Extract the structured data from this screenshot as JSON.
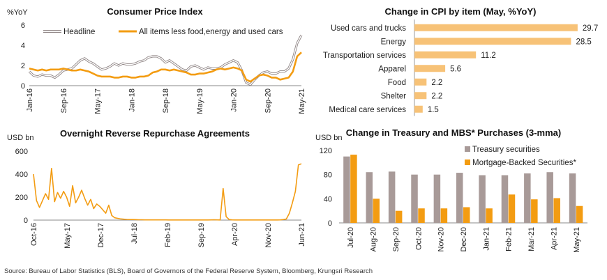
{
  "chart_data": [
    {
      "type": "line",
      "title": "Consumer Price Index",
      "unit_label": "%YoY",
      "ylim": [
        0,
        6
      ],
      "yticks": [
        0,
        2,
        4,
        6
      ],
      "x_ticks": [
        "Jan-16",
        "Sep-16",
        "May-17",
        "Jan-18",
        "Sep-18",
        "May-19",
        "Jan-20",
        "Sep-20",
        "May-21"
      ],
      "x_range": [
        "2016-01",
        "2021-05"
      ],
      "legend_position": "top",
      "series": [
        {
          "name": "Headline",
          "color": "#b3aaaa",
          "values": [
            1.4,
            1.0,
            0.9,
            1.1,
            1.0,
            1.0,
            0.8,
            1.1,
            1.5,
            1.6,
            1.7,
            2.1,
            2.5,
            2.7,
            2.4,
            2.2,
            1.9,
            1.6,
            1.7,
            1.9,
            2.2,
            2.0,
            2.2,
            2.1,
            2.1,
            2.2,
            2.4,
            2.5,
            2.8,
            2.9,
            2.9,
            2.7,
            2.3,
            2.5,
            2.2,
            1.9,
            1.6,
            1.5,
            1.9,
            2.0,
            1.8,
            1.6,
            1.8,
            1.7,
            1.7,
            1.8,
            2.1,
            2.3,
            2.5,
            2.3,
            1.5,
            0.3,
            0.1,
            0.6,
            1.0,
            1.3,
            1.4,
            1.2,
            1.2,
            1.4,
            1.4,
            1.7,
            2.6,
            4.2,
            5.0
          ]
        },
        {
          "name": "All items less food,energy and used cars",
          "color": "#f39c12",
          "values": [
            1.7,
            1.6,
            1.5,
            1.6,
            1.5,
            1.6,
            1.6,
            1.6,
            1.7,
            1.6,
            1.5,
            1.5,
            1.6,
            1.5,
            1.4,
            1.2,
            1.0,
            0.9,
            0.9,
            0.9,
            0.8,
            0.8,
            0.9,
            0.9,
            0.8,
            0.8,
            0.9,
            0.9,
            1.0,
            1.3,
            1.4,
            1.6,
            1.6,
            1.5,
            1.6,
            1.5,
            1.4,
            1.3,
            1.1,
            1.1,
            1.2,
            1.2,
            1.3,
            1.4,
            1.6,
            1.7,
            1.6,
            1.7,
            1.8,
            1.7,
            1.5,
            0.6,
            0.4,
            0.7,
            1.0,
            1.1,
            1.0,
            0.8,
            0.8,
            0.6,
            0.7,
            0.8,
            1.4,
            2.9,
            3.3
          ]
        }
      ]
    },
    {
      "type": "bar",
      "orientation": "horizontal",
      "title": "Change in CPI by item (May, %YoY)",
      "categories": [
        "Used cars and trucks",
        "Energy",
        "Transportation services",
        "Apparel",
        "Food",
        "Shelter",
        "Medical care services"
      ],
      "values": [
        29.7,
        28.5,
        11.2,
        5.6,
        2.2,
        2.2,
        1.5
      ],
      "value_labels": [
        "29.7",
        "28.5",
        "11.2",
        "5.6",
        "2.2",
        "2.2",
        "1.5"
      ],
      "xlim": [
        0,
        32
      ],
      "color": "#f7c277"
    },
    {
      "type": "line",
      "title": "Overnight Reverse Repurchase Agreements",
      "unit_label": "USD bn",
      "ylim": [
        0,
        600
      ],
      "yticks": [
        0,
        200,
        400,
        600
      ],
      "x_ticks": [
        "Oct-16",
        "May-17",
        "Dec-17",
        "Jul-18",
        "Feb-19",
        "Sep-19",
        "Apr-20",
        "Nov-20",
        "Jun-21"
      ],
      "x_range": [
        "2016-10",
        "2021-06"
      ],
      "series": [
        {
          "name": "",
          "color": "#f39c12",
          "values": [
            400,
            170,
            110,
            170,
            230,
            180,
            450,
            160,
            240,
            190,
            250,
            200,
            120,
            300,
            150,
            200,
            260,
            190,
            130,
            180,
            100,
            140,
            120,
            90,
            60,
            130,
            40,
            20,
            15,
            10,
            8,
            6,
            5,
            5,
            4,
            3,
            3,
            2,
            2,
            2,
            2,
            2,
            2,
            2,
            2,
            1,
            1,
            1,
            1,
            1,
            1,
            1,
            1,
            1,
            1,
            1,
            1,
            1,
            1,
            2,
            3,
            2,
            1,
            275,
            30,
            5,
            2,
            1,
            1,
            1,
            1,
            1,
            1,
            1,
            1,
            1,
            1,
            1,
            1,
            1,
            1,
            1,
            2,
            5,
            10,
            60,
            150,
            250,
            480,
            490
          ]
        }
      ]
    },
    {
      "type": "bar",
      "title": "Change in Treasury and MBS* Purchases (3-mma)",
      "unit_label": "USD bn",
      "categories": [
        "Jul-20",
        "Aug-20",
        "Sep-20",
        "Oct-20",
        "Nov-20",
        "Dec-20",
        "Jan-21",
        "Feb-21",
        "Mar-21",
        "Apr-21",
        "May-21"
      ],
      "ylim": [
        0,
        120
      ],
      "yticks": [
        0,
        40,
        80,
        120
      ],
      "legend_position": "top-right",
      "series": [
        {
          "name": "Treasury securities",
          "color": "#a89a98",
          "values": [
            110,
            84,
            85,
            80,
            80,
            83,
            79,
            79,
            82,
            84,
            82
          ]
        },
        {
          "name": "Mortgage-Backed Securities*",
          "color": "#f39c12",
          "values": [
            113,
            40,
            20,
            24,
            24,
            26,
            24,
            47,
            39,
            41,
            28
          ]
        }
      ]
    }
  ],
  "source_note": "Source: Bureau of Labor Statistics (BLS), Board of Governors of the Federal Reserve System, Bloomberg, Krungsri Research"
}
